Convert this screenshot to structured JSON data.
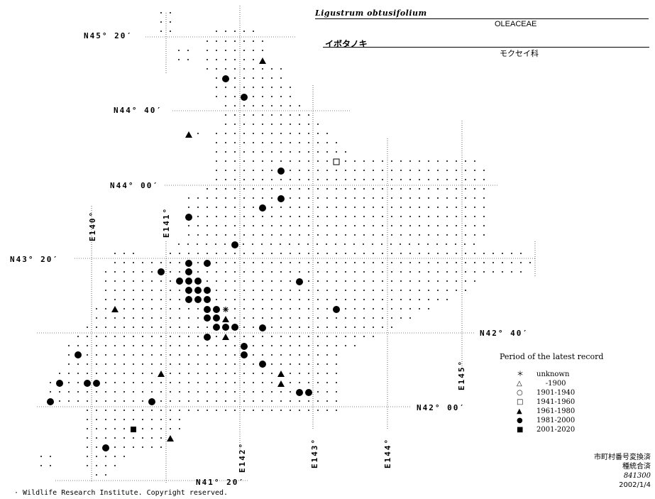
{
  "species": {
    "scientific_name": "Ligustrum obtusifolium",
    "family_en": "OLEACEAE",
    "japanese_name": "イボタノキ",
    "family_jp": "モクセイ科"
  },
  "latitude_labels": [
    "N45° 20′",
    "N44° 40′",
    "N44° 00′",
    "N43° 20′",
    "N42° 40′",
    "N42° 00′",
    "N41° 20′"
  ],
  "longitude_labels": [
    "E140°",
    "E141°",
    "E142°",
    "E143°",
    "E144°",
    "E145°"
  ],
  "legend": {
    "title": "Period of the latest record",
    "items": [
      {
        "symbol": "asterisk",
        "glyph": "＊",
        "label": "unknown"
      },
      {
        "symbol": "open-triangle",
        "glyph": "△",
        "label": "    -1900"
      },
      {
        "symbol": "open-circle",
        "glyph": "○",
        "label": "1901-1940"
      },
      {
        "symbol": "open-square",
        "glyph": "□",
        "label": "1941-1960"
      },
      {
        "symbol": "filled-triangle",
        "glyph": "▲",
        "label": "1961-1980"
      },
      {
        "symbol": "filled-circle",
        "glyph": "●",
        "label": "1981-2000"
      },
      {
        "symbol": "filled-square",
        "glyph": "■",
        "label": "2001-2020"
      }
    ]
  },
  "stamp": {
    "line1": "市町村番号変換済",
    "line2": "種統合済",
    "code": "841300",
    "date": "2002/1/4"
  },
  "copyright": "· Wildlife Research Institute. Copyright reserved.",
  "records_by_period": {
    "unknown": 1,
    "-1900": 0,
    "1901-1940": 0,
    "1941-1960": 1,
    "1961-1980": 8,
    "1981-2000": 41,
    "2001-2020": 1
  },
  "colors": {
    "ink": "#000000",
    "background": "#ffffff"
  }
}
